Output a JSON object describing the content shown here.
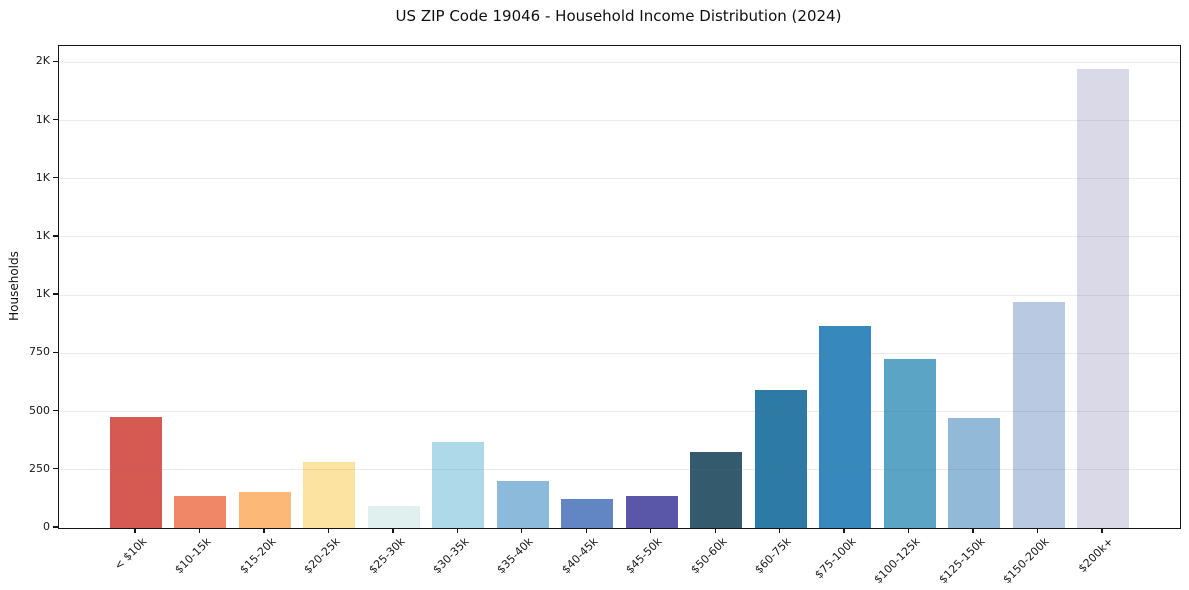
{
  "figure": {
    "title": "US ZIP Code 19046 - Household Income Distribution (2024)",
    "ylabel": "Households"
  },
  "chart_data": {
    "type": "bar",
    "title": "US ZIP Code 19046 - Household Income Distribution (2024)",
    "xlabel": "",
    "ylabel": "Households",
    "categories": [
      "< $10k",
      "$10-15k",
      "$15-20k",
      "$20-25k",
      "$25-30k",
      "$30-35k",
      "$35-40k",
      "$40-45k",
      "$45-50k",
      "$50-60k",
      "$60-75k",
      "$75-100k",
      "$100-125k",
      "$125-150k",
      "$150-200k",
      "$200k+"
    ],
    "values": [
      475,
      136,
      156,
      284,
      96,
      370,
      202,
      125,
      137,
      326,
      592,
      868,
      726,
      472,
      969,
      1970
    ],
    "bar_colors": [
      "#d65a51",
      "#f08868",
      "#fbb877",
      "#fde3a2",
      "#e0f0ef",
      "#aed9e8",
      "#8cbada",
      "#6286c4",
      "#5a56a8",
      "#335a6d",
      "#2e7aa6",
      "#3789bd",
      "#5ca4c6",
      "#92b9d8",
      "#b9c9e1",
      "#d9d9e8"
    ],
    "ylim": [
      0,
      2070
    ],
    "yticks": [
      {
        "value": 0,
        "label": "0"
      },
      {
        "value": 250,
        "label": "250"
      },
      {
        "value": 500,
        "label": "500"
      },
      {
        "value": 750,
        "label": "750"
      },
      {
        "value": 1000,
        "label": "1K"
      },
      {
        "value": 1250,
        "label": "1K"
      },
      {
        "value": 1500,
        "label": "1K"
      },
      {
        "value": 1750,
        "label": "1K"
      },
      {
        "value": 2000,
        "label": "2K"
      }
    ],
    "grid": true,
    "grid_axis": "y",
    "legend": false,
    "x_tick_rotation": 45
  },
  "colors": {
    "background": "#ffffff",
    "spine": "#15151e",
    "gridline": "#ececec",
    "text": "#1a1a1a"
  }
}
